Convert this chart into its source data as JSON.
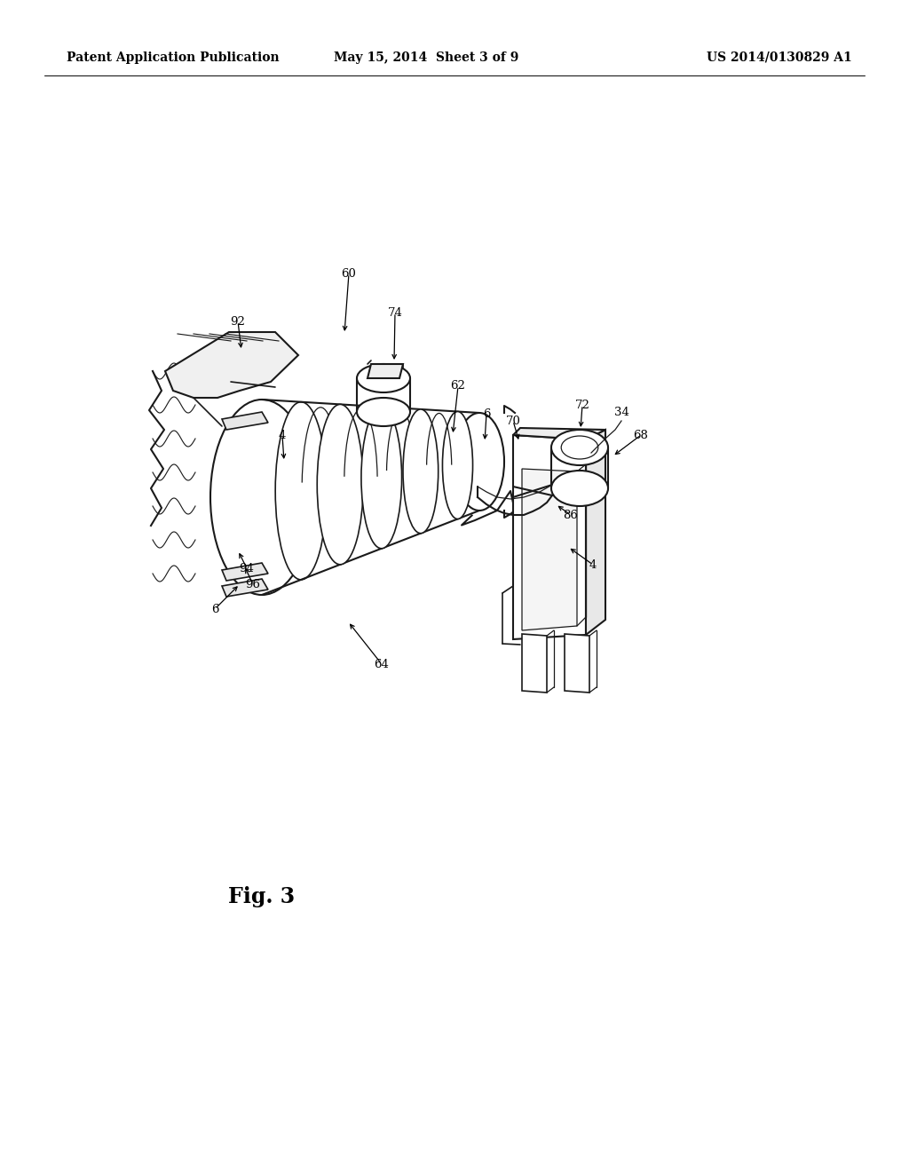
{
  "bg_color": "#ffffff",
  "line_color": "#1a1a1a",
  "header_left": "Patent Application Publication",
  "header_mid": "May 15, 2014  Sheet 3 of 9",
  "header_right": "US 2014/0130829 A1",
  "fig_label": "Fig. 3",
  "header_fontsize": 10,
  "fig_label_fontsize": 17,
  "label_fontsize": 9.5
}
